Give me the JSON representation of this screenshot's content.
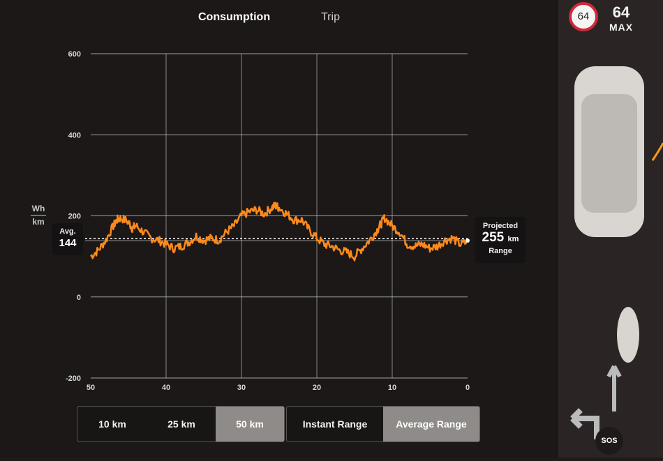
{
  "tabs": [
    {
      "label": "Consumption",
      "active": true
    },
    {
      "label": "Trip",
      "active": false
    }
  ],
  "unit": {
    "top": "Wh",
    "bottom": "km"
  },
  "average": {
    "label": "Avg.",
    "value": "144"
  },
  "projected": {
    "label": "Projected",
    "value": "255",
    "unit": "km",
    "sublabel": "Range"
  },
  "distance_buttons": [
    "10 km",
    "25 km",
    "50 km"
  ],
  "distance_selected": "50 km",
  "range_buttons": [
    "Instant Range",
    "Average Range"
  ],
  "range_selected": "Average Range",
  "speed": {
    "limit": "64",
    "max_value": "64",
    "max_label": "MAX"
  },
  "sos_label": "SOS",
  "colors": {
    "line": "#ff8a1c",
    "grid": "#cfcfcf",
    "avg": "#ffffff",
    "active_button": "#8f8b88",
    "speed_sign_ring": "#d0283a"
  },
  "chart_data": {
    "type": "line",
    "title": "",
    "xlabel": "",
    "ylabel": "Wh/km",
    "x_ticks": [
      "50",
      "40",
      "30",
      "20",
      "10",
      "0"
    ],
    "y_ticks": [
      "600",
      "400",
      "200",
      "0",
      "-200"
    ],
    "xlim": [
      50,
      0
    ],
    "ylim": [
      -200,
      600
    ],
    "grid": true,
    "series": [
      {
        "x": [
          50,
          49,
          48,
          47,
          46.5,
          46,
          45,
          44.5,
          44,
          43,
          42,
          41,
          40,
          39,
          38,
          37,
          36,
          35,
          34,
          33,
          32,
          31,
          30,
          29,
          28,
          27,
          26,
          25.5,
          25,
          24,
          23,
          22,
          21,
          20,
          19,
          18,
          17,
          16,
          15,
          14,
          13,
          12,
          11.5,
          11,
          10,
          9,
          8,
          7,
          6,
          5,
          4,
          3,
          2,
          1,
          0
        ],
        "y": [
          100,
          115,
          140,
          175,
          190,
          195,
          185,
          170,
          175,
          160,
          145,
          140,
          130,
          120,
          125,
          135,
          150,
          140,
          145,
          140,
          160,
          175,
          200,
          210,
          215,
          205,
          220,
          225,
          220,
          205,
          190,
          190,
          165,
          145,
          130,
          125,
          115,
          110,
          100,
          120,
          140,
          165,
          180,
          195,
          175,
          160,
          130,
          125,
          130,
          120,
          125,
          140,
          145,
          130,
          135
        ]
      }
    ],
    "average": 144
  }
}
